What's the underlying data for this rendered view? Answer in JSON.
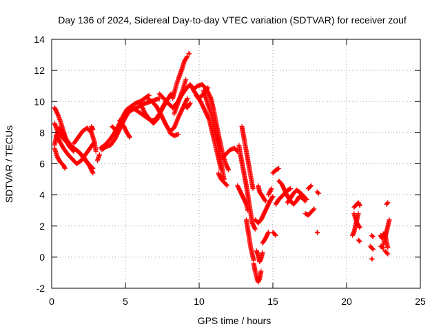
{
  "chart_data": {
    "type": "scatter",
    "title": "Day 136 of 2024, Sidereal Day-to-day VTEC variation (SDTVAR) for receiver zouf",
    "xlabel": "GPS time / hours",
    "ylabel": "SDTVAR / TECUs",
    "xlim": [
      0,
      25
    ],
    "ylim": [
      -2,
      14
    ],
    "xticks": [
      0,
      5,
      10,
      15,
      20,
      25
    ],
    "yticks": [
      -2,
      0,
      2,
      4,
      6,
      8,
      10,
      12,
      14
    ],
    "grid": true,
    "marker": "+",
    "color": "#ff0000",
    "segments": [
      {
        "x": [
          0.2,
          0.4,
          0.6,
          0.9,
          1.2,
          1.5,
          1.8,
          2.2,
          2.6,
          2.8
        ],
        "y": [
          8.6,
          8.1,
          7.8,
          7.5,
          7.2,
          7.0,
          6.8,
          6.4,
          5.8,
          5.4
        ]
      },
      {
        "x": [
          0.2,
          0.35,
          0.5,
          0.7,
          0.9,
          1.2,
          1.5,
          1.9,
          2.3,
          2.6,
          2.8
        ],
        "y": [
          7.2,
          7.9,
          8.3,
          8.1,
          7.7,
          7.3,
          7.0,
          6.7,
          6.2,
          5.9,
          5.7
        ]
      },
      {
        "x": [
          0.2,
          0.3,
          0.45,
          0.6,
          0.8,
          1.0,
          1.2,
          1.5
        ],
        "y": [
          9.6,
          9.4,
          9.1,
          8.7,
          8.1,
          7.5,
          7.1,
          6.8
        ]
      },
      {
        "x": [
          0.2,
          0.4,
          0.6,
          0.8,
          0.9
        ],
        "y": [
          7.0,
          6.4,
          6.1,
          5.9,
          5.7
        ]
      },
      {
        "x": [
          0.3,
          0.5,
          0.8,
          1.1,
          1.4,
          1.7,
          2.0,
          2.3,
          2.6,
          2.9
        ],
        "y": [
          7.8,
          7.5,
          7.0,
          6.6,
          6.3,
          6.0,
          6.2,
          6.6,
          7.0,
          7.4
        ]
      },
      {
        "x": [
          1.5,
          1.8,
          2.1,
          2.4,
          2.7,
          2.9,
          3.0
        ],
        "y": [
          7.3,
          7.7,
          8.1,
          8.3,
          8.0,
          7.4,
          6.8
        ]
      },
      {
        "x": [
          2.7,
          2.8
        ],
        "y": [
          8.4,
          8.2
        ]
      },
      {
        "x": [
          3.1,
          3.25
        ],
        "y": [
          6.2,
          6.6
        ]
      },
      {
        "x": [
          3.3,
          3.6,
          3.9,
          4.2,
          4.5,
          4.8,
          5.1,
          5.4,
          5.7,
          6.0,
          6.3,
          6.6
        ],
        "y": [
          7.0,
          7.2,
          7.5,
          7.9,
          8.4,
          9.0,
          9.5,
          9.7,
          9.9,
          10.0,
          10.2,
          10.4
        ]
      },
      {
        "x": [
          3.4,
          3.7,
          4.0,
          4.3,
          4.6,
          4.9,
          5.2,
          5.5,
          5.8,
          6.1,
          6.4,
          6.7,
          7.0,
          7.3
        ],
        "y": [
          6.9,
          7.1,
          7.2,
          7.6,
          8.2,
          8.8,
          9.3,
          9.5,
          9.6,
          9.8,
          9.9,
          10.0,
          10.1,
          10.2
        ]
      },
      {
        "x": [
          4.1,
          4.3
        ],
        "y": [
          8.4,
          8.2
        ]
      },
      {
        "x": [
          4.6,
          4.9,
          5.1,
          5.3
        ],
        "y": [
          8.8,
          8.4,
          8.0,
          7.7
        ]
      },
      {
        "x": [
          5.5,
          5.8,
          6.1,
          6.4,
          6.7,
          7.0,
          7.3,
          7.6,
          7.9,
          8.1
        ],
        "y": [
          9.6,
          9.4,
          9.2,
          9.0,
          8.8,
          8.8,
          9.2,
          9.7,
          10.2,
          10.5
        ]
      },
      {
        "x": [
          6.0,
          6.3,
          6.6,
          6.9,
          7.2,
          7.5,
          7.8,
          8.0
        ],
        "y": [
          9.9,
          9.3,
          8.9,
          8.6,
          8.9,
          9.6,
          10.1,
          10.3
        ]
      },
      {
        "x": [
          6.5,
          6.8,
          7.1,
          7.4,
          7.7,
          8.0,
          8.3,
          8.6,
          8.9,
          9.2
        ],
        "y": [
          10.2,
          10.0,
          9.7,
          9.2,
          8.6,
          8.1,
          8.3,
          9.0,
          9.6,
          10.2
        ]
      },
      {
        "x": [
          7.3,
          7.6,
          7.9,
          8.2,
          8.5,
          8.8,
          9.1,
          9.4,
          9.7,
          10.0,
          10.3,
          10.6
        ],
        "y": [
          10.5,
          10.2,
          9.9,
          9.6,
          9.9,
          10.4,
          10.8,
          11.1,
          10.6,
          10.2,
          10.5,
          10.9
        ]
      },
      {
        "x": [
          8.2,
          8.5,
          8.8,
          9.0,
          9.2
        ],
        "y": [
          10.2,
          11.2,
          12.0,
          12.6,
          12.9
        ]
      },
      {
        "x": [
          8.3,
          8.6,
          8.9,
          9.1
        ],
        "y": [
          9.2,
          10.0,
          10.8,
          11.4
        ]
      },
      {
        "x": [
          8.0,
          8.3,
          8.6
        ],
        "y": [
          8.0,
          7.8,
          7.9
        ]
      },
      {
        "x": [
          9.3
        ],
        "y": [
          13.1
        ]
      },
      {
        "x": [
          9.0,
          9.2,
          9.4
        ],
        "y": [
          9.8,
          9.6,
          9.9
        ]
      },
      {
        "x": [
          9.6,
          9.9,
          10.2,
          10.5,
          10.8,
          11.0,
          11.2,
          11.4,
          11.6,
          11.8,
          12.0
        ],
        "y": [
          10.8,
          11.0,
          11.1,
          10.8,
          10.2,
          9.4,
          8.4,
          7.5,
          6.6,
          6.0,
          5.6
        ]
      },
      {
        "x": [
          9.8,
          10.1,
          10.4,
          10.7,
          10.9,
          11.1,
          11.3,
          11.5
        ],
        "y": [
          10.4,
          10.0,
          9.4,
          8.8,
          8.0,
          7.2,
          6.4,
          5.6
        ]
      },
      {
        "x": [
          10.3,
          10.6,
          10.9,
          11.1,
          11.3,
          11.5,
          11.7
        ],
        "y": [
          10.7,
          9.8,
          9.0,
          8.0,
          7.0,
          6.0,
          5.0
        ]
      },
      {
        "x": [
          11.3,
          11.5,
          11.7,
          11.9
        ],
        "y": [
          5.4,
          5.0,
          4.8,
          4.6
        ]
      },
      {
        "x": [
          11.6,
          11.8,
          12.1,
          12.4,
          12.6
        ],
        "y": [
          6.4,
          6.6,
          6.9,
          7.0,
          6.8
        ]
      },
      {
        "x": [
          12.7,
          12.8,
          12.9,
          13.0,
          13.1,
          13.2,
          13.3,
          13.4,
          13.5,
          13.6,
          13.8
        ],
        "y": [
          7.2,
          6.6,
          6.1,
          5.6,
          5.1,
          4.6,
          4.0,
          3.4,
          2.8,
          2.2,
          1.8
        ]
      },
      {
        "x": [
          12.9,
          13.05,
          13.2,
          13.35,
          13.5,
          13.65
        ],
        "y": [
          8.4,
          7.6,
          6.8,
          6.0,
          5.2,
          4.4
        ]
      },
      {
        "x": [
          12.6,
          12.8,
          13.0,
          13.2,
          13.3
        ],
        "y": [
          4.6,
          4.2,
          3.8,
          3.4,
          3.0
        ]
      },
      {
        "x": [
          13.2,
          13.3,
          13.4,
          13.5,
          13.6,
          13.7
        ],
        "y": [
          2.4,
          1.8,
          1.2,
          0.6,
          0.2,
          -0.2
        ]
      },
      {
        "x": [
          13.7,
          13.8,
          13.9,
          14.0,
          14.1,
          14.2
        ],
        "y": [
          -0.4,
          -0.9,
          -1.3,
          -1.6,
          -1.4,
          -0.9
        ]
      },
      {
        "x": [
          13.9,
          14.0,
          14.1,
          14.2,
          14.3
        ],
        "y": [
          0.4,
          0.1,
          -0.3,
          -0.1,
          0.3
        ]
      },
      {
        "x": [
          13.8,
          14.0,
          14.2,
          14.4,
          14.6,
          14.8,
          15.0
        ],
        "y": [
          2.4,
          2.2,
          2.4,
          2.8,
          3.2,
          3.6,
          3.9
        ]
      },
      {
        "x": [
          14.0,
          14.1,
          14.3,
          14.5
        ],
        "y": [
          4.6,
          4.2,
          3.9,
          3.6
        ]
      },
      {
        "x": [
          14.3,
          14.5,
          14.7
        ],
        "y": [
          0.9,
          1.2,
          1.6
        ]
      },
      {
        "x": [
          14.7,
          14.9
        ],
        "y": [
          4.0,
          4.4
        ]
      },
      {
        "x": [
          15.0,
          15.2
        ],
        "y": [
          1.6,
          1.4
        ]
      },
      {
        "x": [
          15.0,
          15.2,
          15.4
        ],
        "y": [
          5.4,
          5.6,
          5.7
        ]
      },
      {
        "x": [
          15.2,
          15.4,
          15.6,
          15.8,
          16.0,
          16.2
        ],
        "y": [
          3.4,
          3.7,
          3.9,
          4.1,
          4.3,
          4.4
        ]
      },
      {
        "x": [
          15.4,
          15.6,
          15.8,
          16.0,
          16.2,
          16.4,
          16.6,
          16.8,
          17.0,
          17.2
        ],
        "y": [
          4.9,
          4.7,
          4.3,
          3.9,
          3.6,
          3.4,
          3.6,
          3.9,
          3.8,
          3.6
        ]
      },
      {
        "x": [
          16.0,
          16.2,
          16.4,
          16.6,
          16.8,
          17.0,
          17.3
        ],
        "y": [
          3.5,
          3.8,
          4.1,
          4.3,
          4.2,
          4.0,
          3.7
        ]
      },
      {
        "x": [
          17.2,
          17.4,
          17.6,
          17.8
        ],
        "y": [
          2.8,
          2.7,
          2.9,
          3.1
        ]
      },
      {
        "x": [
          17.4,
          17.6
        ],
        "y": [
          4.4,
          4.6
        ]
      },
      {
        "x": [
          18.0,
          18.1
        ],
        "y": [
          4.2,
          4.1
        ]
      },
      {
        "x": [
          18.0
        ],
        "y": [
          1.6
        ]
      },
      {
        "x": [
          20.5,
          20.6,
          20.7,
          20.8,
          20.9
        ],
        "y": [
          3.2,
          3.3,
          3.4,
          3.5,
          3.3
        ]
      },
      {
        "x": [
          20.4,
          20.5,
          20.6,
          20.7,
          20.8
        ],
        "y": [
          1.4,
          1.6,
          2.0,
          2.4,
          2.8
        ]
      },
      {
        "x": [
          20.5,
          20.7,
          20.9
        ],
        "y": [
          2.8,
          2.2,
          1.9
        ]
      },
      {
        "x": [
          20.8,
          20.9
        ],
        "y": [
          1.1,
          1.0
        ]
      },
      {
        "x": [
          21.6,
          21.7,
          21.8
        ],
        "y": [
          0.7,
          0.6,
          0.5
        ]
      },
      {
        "x": [
          21.7
        ],
        "y": [
          -0.1
        ]
      },
      {
        "x": [
          21.7,
          21.8
        ],
        "y": [
          1.4,
          1.3
        ]
      },
      {
        "x": [
          22.3,
          22.4,
          22.5
        ],
        "y": [
          1.4,
          1.2,
          1.5
        ]
      },
      {
        "x": [
          22.3,
          22.5
        ],
        "y": [
          0.7,
          0.6
        ]
      },
      {
        "x": [
          22.5,
          22.6,
          22.7,
          22.8,
          22.9
        ],
        "y": [
          0.8,
          1.2,
          1.6,
          2.0,
          2.4
        ]
      },
      {
        "x": [
          22.6,
          22.7,
          22.8
        ],
        "y": [
          0.4,
          0.3,
          0.2
        ]
      },
      {
        "x": [
          22.6,
          22.7,
          22.8
        ],
        "y": [
          1.6,
          1.0,
          0.6
        ]
      },
      {
        "x": [
          22.7,
          22.8
        ],
        "y": [
          3.4,
          3.5
        ]
      }
    ]
  }
}
